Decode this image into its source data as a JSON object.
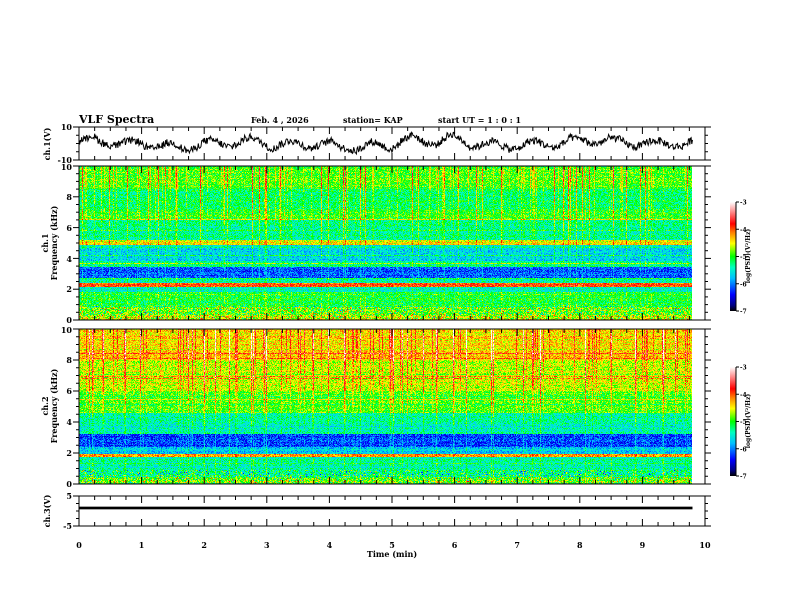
{
  "header": {
    "title": "VLF Spectra",
    "date": "Feb. 4  , 2026",
    "station": "station= KAP",
    "start_ut": "start  UT =   1 : 0  : 1"
  },
  "chart_data": [
    {
      "type": "line",
      "name": "ch1-waveform",
      "ylabel": "ch.1(V)",
      "ylim": [
        -10,
        10
      ],
      "yticks": [
        "10",
        "-10"
      ],
      "xlim": [
        0,
        10
      ],
      "data_end_min": 9.8,
      "series": [
        {
          "name": "ch.1",
          "description_values": "noisy oscillation around 0 V, amplitude about 4-7 V"
        }
      ]
    },
    {
      "type": "heatmap",
      "name": "ch1-spectrogram",
      "ylabel_line1": "ch.1",
      "ylabel_line2": "Frequency  (kHz)",
      "ylim": [
        0,
        10
      ],
      "yticks": [
        "0",
        "2",
        "4",
        "6",
        "8",
        "10"
      ],
      "xlim": [
        0,
        10
      ],
      "data_end_min": 9.8,
      "colorbar": {
        "label": "log(PSD)(V²/Hz)",
        "range": [
          -7,
          -3
        ],
        "ticks": [
          "-3",
          "-4",
          "-5",
          "-6",
          "-7"
        ]
      },
      "band_profile_khz": [
        {
          "f": [
            0.0,
            0.3
          ],
          "level": -4.6
        },
        {
          "f": [
            0.3,
            0.8
          ],
          "level": -4.9
        },
        {
          "f": [
            0.8,
            1.8
          ],
          "level": -5.1
        },
        {
          "f": [
            1.8,
            2.1
          ],
          "level": -5.5
        },
        {
          "f": [
            2.1,
            2.4
          ],
          "level": -4.0
        },
        {
          "f": [
            2.4,
            2.7
          ],
          "level": -5.4
        },
        {
          "f": [
            2.7,
            3.4
          ],
          "level": -6.1
        },
        {
          "f": [
            3.4,
            3.8
          ],
          "level": -5.3
        },
        {
          "f": [
            3.8,
            4.9
          ],
          "level": -5.7
        },
        {
          "f": [
            4.9,
            5.2
          ],
          "level": -4.5
        },
        {
          "f": [
            5.2,
            6.5
          ],
          "level": -5.3
        },
        {
          "f": [
            6.5,
            7.2
          ],
          "level": -5.0
        },
        {
          "f": [
            7.2,
            8.5
          ],
          "level": -5.2
        },
        {
          "f": [
            8.5,
            10.0
          ],
          "level": -4.9
        }
      ]
    },
    {
      "type": "heatmap",
      "name": "ch2-spectrogram",
      "ylabel_line1": "ch.2",
      "ylabel_line2": "Frequency  (kHz)",
      "ylim": [
        0,
        10
      ],
      "yticks": [
        "0",
        "2",
        "4",
        "6",
        "8",
        "10"
      ],
      "xlim": [
        0,
        10
      ],
      "data_end_min": 9.8,
      "colorbar": {
        "label": "log(PSD)(V²/Hz)",
        "range": [
          -7,
          -3
        ],
        "ticks": [
          "-3",
          "-4",
          "-5",
          "-6",
          "-7"
        ]
      },
      "band_profile_khz": [
        {
          "f": [
            0.0,
            0.4
          ],
          "level": -4.9
        },
        {
          "f": [
            0.4,
            1.0
          ],
          "level": -5.3
        },
        {
          "f": [
            1.0,
            1.7
          ],
          "level": -5.4
        },
        {
          "f": [
            1.7,
            1.9
          ],
          "level": -4.3
        },
        {
          "f": [
            1.9,
            2.4
          ],
          "level": -5.7
        },
        {
          "f": [
            2.4,
            3.2
          ],
          "level": -6.2
        },
        {
          "f": [
            3.2,
            3.6
          ],
          "level": -5.4
        },
        {
          "f": [
            3.6,
            4.6
          ],
          "level": -5.4
        },
        {
          "f": [
            4.6,
            6.0
          ],
          "level": -4.9
        },
        {
          "f": [
            6.0,
            8.0
          ],
          "level": -4.6
        },
        {
          "f": [
            8.0,
            10.0
          ],
          "level": -4.4
        }
      ]
    },
    {
      "type": "line",
      "name": "ch3-waveform",
      "ylabel": "ch.3(V)",
      "ylim": [
        -5,
        5
      ],
      "yticks": [
        "5",
        "-5"
      ],
      "xlim": [
        0,
        10
      ],
      "data_end_min": 9.8,
      "band_center_v": 1.0,
      "band_halfwidth_v": 0.45,
      "xlabel": "Time  (min)",
      "xticks": [
        "0",
        "1",
        "2",
        "3",
        "4",
        "5",
        "6",
        "7",
        "8",
        "9",
        "10"
      ]
    }
  ]
}
